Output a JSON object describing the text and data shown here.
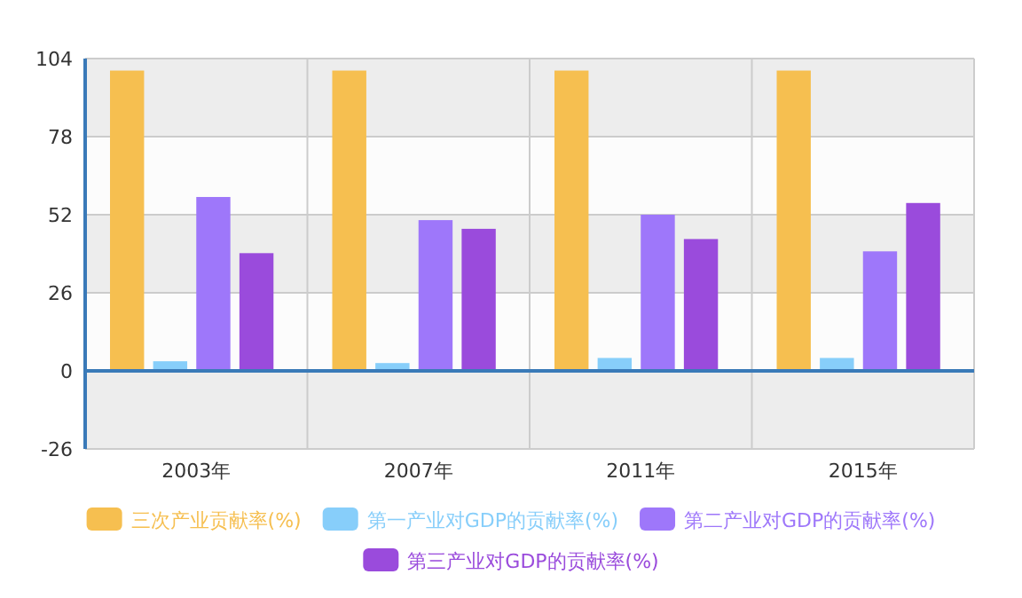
{
  "chart_data": {
    "type": "bar",
    "categories": [
      "2003年",
      "2007年",
      "2011年",
      "2015年"
    ],
    "ylim": [
      -26,
      104
    ],
    "yticks": [
      -26,
      0,
      26,
      52,
      78,
      104
    ],
    "grid": true,
    "legend": "bottom",
    "ref_lines": [
      {
        "axis": "y",
        "value": 0,
        "color": "#3a7ab8"
      }
    ],
    "series": [
      {
        "name": "三次产业贡献率(%)",
        "color": "#f6bf50",
        "values": [
          100,
          100,
          100,
          100
        ]
      },
      {
        "name": "第一产业对GDP的贡献率(%)",
        "color": "#87cefa",
        "values": [
          3.2,
          2.6,
          4.3,
          4.3
        ]
      },
      {
        "name": "第二产业对GDP的贡献率(%)",
        "color": "#9e77fa",
        "values": [
          57.9,
          50.2,
          52.0,
          39.8
        ]
      },
      {
        "name": "第三产业对GDP的贡献率(%)",
        "color": "#9a4bdc",
        "values": [
          39.2,
          47.3,
          43.9,
          55.9
        ]
      }
    ]
  }
}
